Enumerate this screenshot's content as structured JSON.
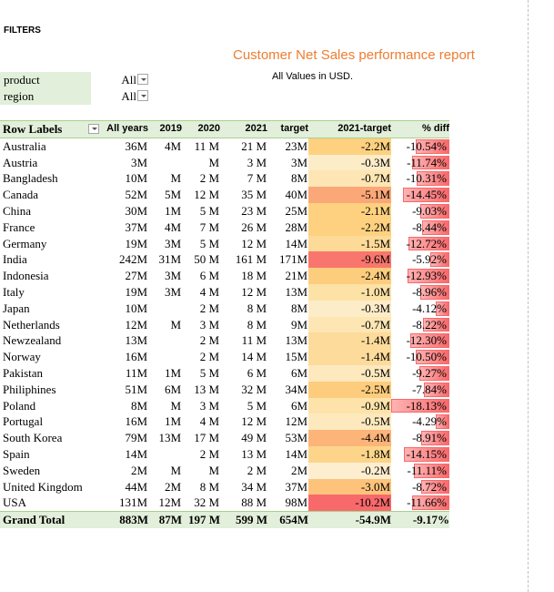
{
  "filters_label": "FILTERS",
  "report": {
    "title": "Customer Net Sales performance report",
    "subtitle": "All Values in USD."
  },
  "filters": [
    {
      "name": "product",
      "value": "All"
    },
    {
      "name": "region",
      "value": "All"
    }
  ],
  "table": {
    "headers": [
      "Row Labels",
      "All years",
      "2019",
      "2020",
      "2021",
      "target",
      "2021-target",
      "% diff"
    ],
    "rows": [
      {
        "label": "Australia",
        "all": "36M",
        "y2019": "4M",
        "y2020": "11 M",
        "y2021": "21 M",
        "target": "23M",
        "delta": "-2.2M",
        "diff": "-10.54%",
        "diff_value": -10.54,
        "delta_color": "#fdd17f"
      },
      {
        "label": "Austria",
        "all": "3M",
        "y2019": "",
        "y2020": "M",
        "y2021": "3 M",
        "target": "3M",
        "delta": "-0.3M",
        "diff": "-11.74%",
        "diff_value": -11.74,
        "delta_color": "#fdecc8"
      },
      {
        "label": "Bangladesh",
        "all": "10M",
        "y2019": "M",
        "y2020": "2 M",
        "y2021": "7 M",
        "target": "8M",
        "delta": "-0.7M",
        "diff": "-10.31%",
        "diff_value": -10.31,
        "delta_color": "#fde6b3"
      },
      {
        "label": "Canada",
        "all": "52M",
        "y2019": "5M",
        "y2020": "12 M",
        "y2021": "35 M",
        "target": "40M",
        "delta": "-5.1M",
        "diff": "-14.45%",
        "diff_value": -14.45,
        "delta_color": "#fba777"
      },
      {
        "label": "China",
        "all": "30M",
        "y2019": "1M",
        "y2020": "5 M",
        "y2021": "23 M",
        "target": "25M",
        "delta": "-2.1M",
        "diff": "-9.03%",
        "diff_value": -9.03,
        "delta_color": "#fdd17f"
      },
      {
        "label": "France",
        "all": "37M",
        "y2019": "4M",
        "y2020": "7 M",
        "y2021": "26 M",
        "target": "28M",
        "delta": "-2.2M",
        "diff": "-8.44%",
        "diff_value": -8.44,
        "delta_color": "#fdd17f"
      },
      {
        "label": "Germany",
        "all": "19M",
        "y2019": "3M",
        "y2020": "5 M",
        "y2021": "12 M",
        "target": "14M",
        "delta": "-1.5M",
        "diff": "-12.72%",
        "diff_value": -12.72,
        "delta_color": "#fdda97"
      },
      {
        "label": "India",
        "all": "242M",
        "y2019": "31M",
        "y2020": "50 M",
        "y2021": "161 M",
        "target": "171M",
        "delta": "-9.6M",
        "diff": "-5.92%",
        "diff_value": -5.92,
        "delta_color": "#f8766d"
      },
      {
        "label": "Indonesia",
        "all": "27M",
        "y2019": "3M",
        "y2020": "6 M",
        "y2021": "18 M",
        "target": "21M",
        "delta": "-2.4M",
        "diff": "-12.93%",
        "diff_value": -12.93,
        "delta_color": "#fdcd7e"
      },
      {
        "label": "Italy",
        "all": "19M",
        "y2019": "3M",
        "y2020": "4 M",
        "y2021": "12 M",
        "target": "13M",
        "delta": "-1.0M",
        "diff": "-8.96%",
        "diff_value": -8.96,
        "delta_color": "#fde2a6"
      },
      {
        "label": "Japan",
        "all": "10M",
        "y2019": "",
        "y2020": "2 M",
        "y2021": "8 M",
        "target": "8M",
        "delta": "-0.3M",
        "diff": "-4.12%",
        "diff_value": -4.12,
        "delta_color": "#fdecc8"
      },
      {
        "label": "Netherlands",
        "all": "12M",
        "y2019": "M",
        "y2020": "3 M",
        "y2021": "8 M",
        "target": "9M",
        "delta": "-0.7M",
        "diff": "-8.22%",
        "diff_value": -8.22,
        "delta_color": "#fde6b3"
      },
      {
        "label": "Newzealand",
        "all": "13M",
        "y2019": "",
        "y2020": "2 M",
        "y2021": "11 M",
        "target": "13M",
        "delta": "-1.4M",
        "diff": "-12.30%",
        "diff_value": -12.3,
        "delta_color": "#fddb9b"
      },
      {
        "label": "Norway",
        "all": "16M",
        "y2019": "",
        "y2020": "2 M",
        "y2021": "14 M",
        "target": "15M",
        "delta": "-1.4M",
        "diff": "-10.50%",
        "diff_value": -10.5,
        "delta_color": "#fddb9b"
      },
      {
        "label": "Pakistan",
        "all": "11M",
        "y2019": "1M",
        "y2020": "5 M",
        "y2021": "6 M",
        "target": "6M",
        "delta": "-0.5M",
        "diff": "-9.27%",
        "diff_value": -9.27,
        "delta_color": "#fde9bd"
      },
      {
        "label": "Philiphines",
        "all": "51M",
        "y2019": "6M",
        "y2020": "13 M",
        "y2021": "32 M",
        "target": "34M",
        "delta": "-2.5M",
        "diff": "-7.84%",
        "diff_value": -7.84,
        "delta_color": "#fdcc7d"
      },
      {
        "label": "Poland",
        "all": "8M",
        "y2019": "M",
        "y2020": "3 M",
        "y2021": "5 M",
        "target": "6M",
        "delta": "-0.9M",
        "diff": "-18.13%",
        "diff_value": -18.13,
        "delta_color": "#fde3a9"
      },
      {
        "label": "Portugal",
        "all": "16M",
        "y2019": "1M",
        "y2020": "4 M",
        "y2021": "12 M",
        "target": "12M",
        "delta": "-0.5M",
        "diff": "-4.29%",
        "diff_value": -4.29,
        "delta_color": "#fde9bd"
      },
      {
        "label": "South Korea",
        "all": "79M",
        "y2019": "13M",
        "y2020": "17 M",
        "y2021": "49 M",
        "target": "53M",
        "delta": "-4.4M",
        "diff": "-8.91%",
        "diff_value": -8.91,
        "delta_color": "#fcb479"
      },
      {
        "label": "Spain",
        "all": "14M",
        "y2019": "",
        "y2020": "2 M",
        "y2021": "13 M",
        "target": "14M",
        "delta": "-1.8M",
        "diff": "-14.15%",
        "diff_value": -14.15,
        "delta_color": "#fdd58a"
      },
      {
        "label": "Sweden",
        "all": "2M",
        "y2019": "M",
        "y2020": "M",
        "y2021": "2 M",
        "target": "2M",
        "delta": "-0.2M",
        "diff": "-11.11%",
        "diff_value": -11.11,
        "delta_color": "#feeed0"
      },
      {
        "label": "United Kingdom",
        "all": "44M",
        "y2019": "2M",
        "y2020": "8 M",
        "y2021": "34 M",
        "target": "37M",
        "delta": "-3.0M",
        "diff": "-8.72%",
        "diff_value": -8.72,
        "delta_color": "#fdc37b"
      },
      {
        "label": "USA",
        "all": "131M",
        "y2019": "12M",
        "y2020": "32 M",
        "y2021": "88 M",
        "target": "98M",
        "delta": "-10.2M",
        "diff": "-11.66%",
        "diff_value": -11.66,
        "delta_color": "#f8696b"
      }
    ],
    "total": {
      "label": "Grand Total",
      "all": "883M",
      "y2019": "87M",
      "y2020": "197 M",
      "y2021": "599 M",
      "target": "654M",
      "delta": "-54.9M",
      "diff": "-9.17%"
    }
  },
  "colors": {
    "title": "#ed7d31",
    "header_bg": "#e2efda",
    "bar": "#f8696b"
  }
}
